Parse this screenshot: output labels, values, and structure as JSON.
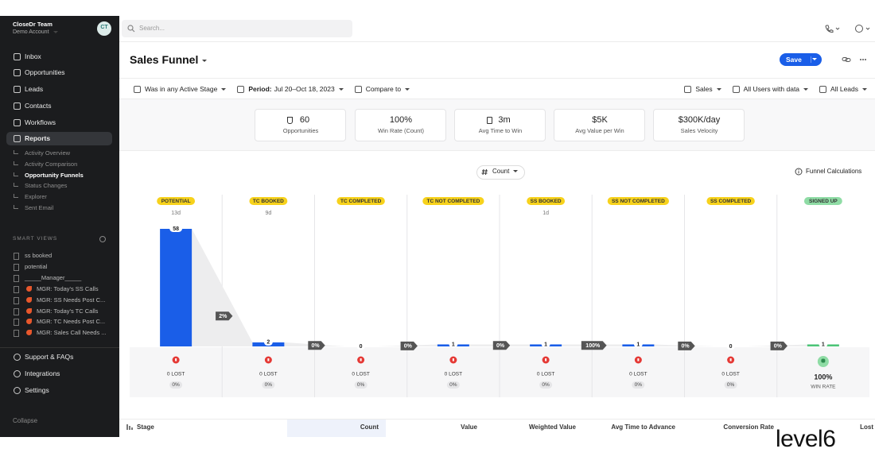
{
  "sidebar": {
    "team": "CloseDr Team",
    "account": "Demo Account",
    "avatar": "CT",
    "nav": [
      "Inbox",
      "Opportunities",
      "Leads",
      "Contacts",
      "Workflows",
      "Reports"
    ],
    "reports_menu": [
      "Activity Overview",
      "Activity Comparison",
      "Opportunity Funnels",
      "Status Changes",
      "Explorer",
      "Sent Email"
    ],
    "smart_views_title": "SMART VIEWS",
    "smart_views": [
      "ss booked",
      "potential",
      "_____Manager_____",
      "MGR: Today's SS Calls",
      "MGR: SS Needs Post C...",
      "MGR: Today's TC Calls",
      "MGR: TC Needs Post C...",
      "MGR: Sales Call Needs ..."
    ],
    "footer_nav": [
      "Support & FAQs",
      "Integrations",
      "Settings"
    ],
    "collapse": "Collapse"
  },
  "topbar": {
    "search_placeholder": "Search..."
  },
  "header": {
    "title": "Sales Funnel",
    "save": "Save"
  },
  "filters": {
    "left": [
      {
        "text": "Was in any Active Stage"
      },
      {
        "label": "Period:",
        "text": "Jul 20–Oct 18, 2023"
      },
      {
        "text": "Compare to"
      }
    ],
    "right": [
      "Sales",
      "All Users with data",
      "All Leads"
    ]
  },
  "kpis": [
    {
      "value": "60",
      "label": "Opportunities"
    },
    {
      "value": "100%",
      "label": "Win Rate (Count)"
    },
    {
      "value": "3m",
      "label": "Avg Time to Win"
    },
    {
      "value": "$5K",
      "label": "Avg Value per Win"
    },
    {
      "value": "$300K/day",
      "label": "Sales Velocity"
    }
  ],
  "funnel": {
    "metric": "Count",
    "calculations": "Funnel Calculations",
    "stages": [
      {
        "name": "POTENTIAL",
        "time": "13d",
        "count": 58,
        "lost": "0 LOST",
        "lost_rate": "0%"
      },
      {
        "name": "TC BOOKED",
        "time": "9d",
        "count": 2,
        "lost": "0 LOST",
        "lost_rate": "0%"
      },
      {
        "name": "TC COMPLETED",
        "count": 0,
        "lost": "0 LOST",
        "lost_rate": "0%"
      },
      {
        "name": "TC NOT COMPLETED",
        "count": 1,
        "lost": "0 LOST",
        "lost_rate": "0%"
      },
      {
        "name": "SS BOOKED",
        "time": "1d",
        "count": 1,
        "lost": "0 LOST",
        "lost_rate": "0%"
      },
      {
        "name": "SS NOT COMPLETED",
        "count": 1,
        "lost": "0 LOST",
        "lost_rate": "0%"
      },
      {
        "name": "SS COMPLETED",
        "count": 0,
        "lost": "0 LOST",
        "lost_rate": "0%"
      },
      {
        "name": "SIGNED UP",
        "count": 1,
        "win_rate": "100%",
        "win_label": "WIN RATE"
      }
    ],
    "conversions": [
      "2%",
      "0%",
      "0%",
      "0%",
      "100%",
      "0%",
      "0%"
    ]
  },
  "table": {
    "columns": [
      "Stage",
      "Count",
      "Value",
      "Weighted Value",
      "Avg Time to Advance",
      "Conversion Rate",
      "Lost"
    ]
  },
  "brand": "level6"
}
